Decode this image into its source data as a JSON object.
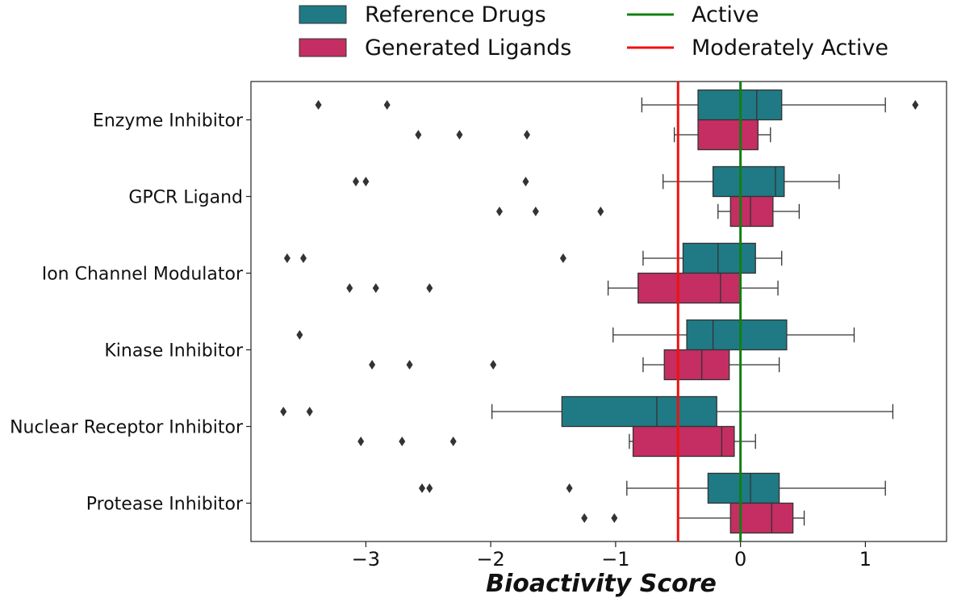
{
  "chart_data": {
    "type": "boxplot",
    "orientation": "horizontal",
    "title": "",
    "xlabel": "Bioactivity Score",
    "ylabel": "",
    "xlim": [
      -3.92,
      1.65
    ],
    "xticks": [
      -3,
      -2,
      -1,
      0,
      1
    ],
    "xtick_labels": [
      "−3",
      "−2",
      "−1",
      "0",
      "1"
    ],
    "categories": [
      "Enzyme Inhibitor",
      "GPCR Ligand",
      "Ion Channel Modulator",
      "Kinase Inhibitor",
      "Nuclear Receptor Inhibitor",
      "Protease Inhibitor"
    ],
    "series": [
      {
        "name": "Reference Drugs",
        "color": "#1f7a85",
        "boxes": [
          {
            "whisker_low": -0.79,
            "q1": -0.34,
            "median": 0.13,
            "q3": 0.33,
            "whisker_high": 1.16,
            "outliers": [
              -3.38,
              -2.83,
              1.4
            ]
          },
          {
            "whisker_low": -0.62,
            "q1": -0.22,
            "median": 0.28,
            "q3": 0.35,
            "whisker_high": 0.79,
            "outliers": [
              -3.08,
              -3.0,
              -1.72
            ]
          },
          {
            "whisker_low": -0.78,
            "q1": -0.46,
            "median": -0.18,
            "q3": 0.12,
            "whisker_high": 0.33,
            "outliers": [
              -3.63,
              -3.5,
              -1.42
            ]
          },
          {
            "whisker_low": -1.02,
            "q1": -0.43,
            "median": -0.22,
            "q3": 0.37,
            "whisker_high": 0.91,
            "outliers": [
              -3.53
            ]
          },
          {
            "whisker_low": -1.99,
            "q1": -1.43,
            "median": -0.67,
            "q3": -0.19,
            "whisker_high": 1.22,
            "outliers": [
              -3.66,
              -3.45
            ]
          },
          {
            "whisker_low": -0.91,
            "q1": -0.26,
            "median": 0.08,
            "q3": 0.31,
            "whisker_high": 1.16,
            "outliers": [
              -2.55,
              -2.49,
              -1.37
            ]
          }
        ]
      },
      {
        "name": "Generated Ligands",
        "color": "#c42e62",
        "boxes": [
          {
            "whisker_low": -0.53,
            "q1": -0.34,
            "median": 0.0,
            "q3": 0.14,
            "whisker_high": 0.24,
            "outliers": [
              -2.58,
              -2.25,
              -1.71
            ]
          },
          {
            "whisker_low": -0.18,
            "q1": -0.08,
            "median": 0.08,
            "q3": 0.26,
            "whisker_high": 0.47,
            "outliers": [
              -1.93,
              -1.64,
              -1.12
            ]
          },
          {
            "whisker_low": -1.06,
            "q1": -0.82,
            "median": -0.16,
            "q3": 0.0,
            "whisker_high": 0.3,
            "outliers": [
              -3.13,
              -2.92,
              -2.49
            ]
          },
          {
            "whisker_low": -0.78,
            "q1": -0.61,
            "median": -0.31,
            "q3": -0.09,
            "whisker_high": 0.31,
            "outliers": [
              -2.95,
              -2.65,
              -1.98
            ]
          },
          {
            "whisker_low": -0.89,
            "q1": -0.86,
            "median": -0.15,
            "q3": -0.05,
            "whisker_high": 0.12,
            "outliers": [
              -3.04,
              -2.71,
              -2.3
            ]
          },
          {
            "whisker_low": -0.5,
            "q1": -0.08,
            "median": 0.25,
            "q3": 0.42,
            "whisker_high": 0.51,
            "outliers": [
              -1.25,
              -1.01
            ]
          }
        ]
      }
    ],
    "reference_lines": [
      {
        "name": "Active",
        "x": 0.0,
        "color": "#118011"
      },
      {
        "name": "Moderately Active",
        "x": -0.5,
        "color": "#ee1111"
      }
    ],
    "legend": {
      "placement": "top-center, outside plot",
      "entries": [
        "Reference Drugs",
        "Generated Ligands",
        "Active",
        "Moderately Active"
      ]
    },
    "grid": false
  }
}
